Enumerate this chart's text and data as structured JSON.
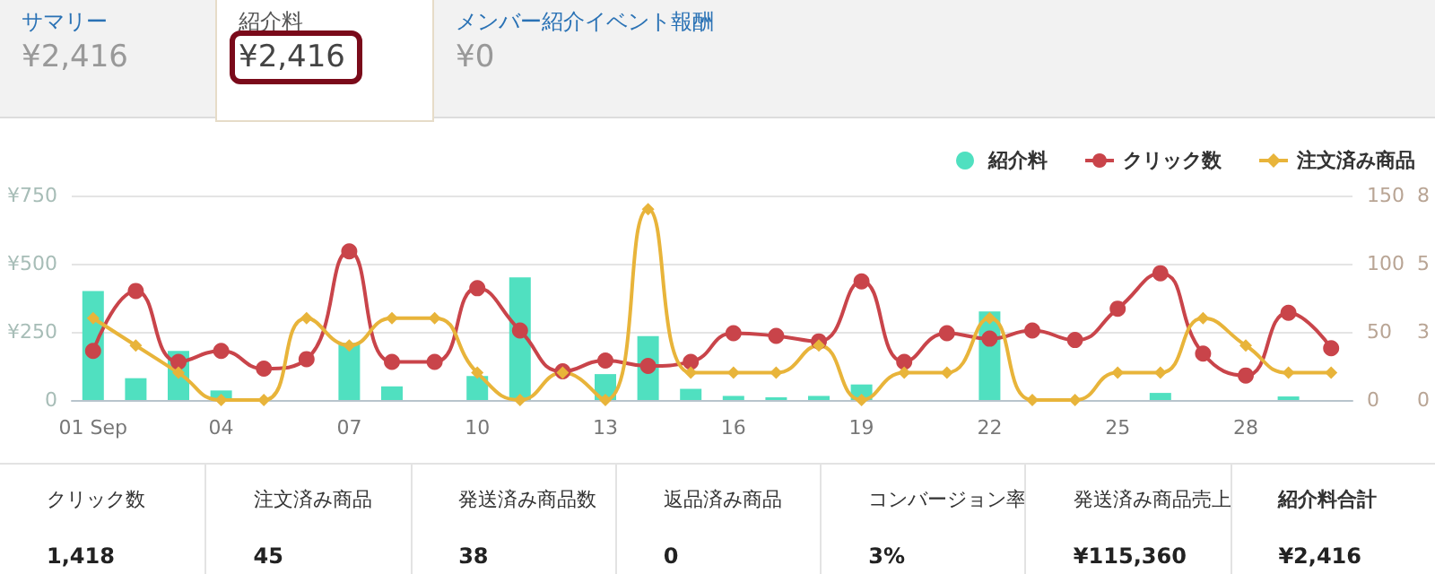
{
  "chart_data": [
    {
      "type": "other",
      "annotations": [
        "サマリー",
        "¥2,416",
        "紹介料",
        "¥2,416",
        "メンバー紹介イベント報酬",
        "¥0"
      ]
    },
    {
      "type": "bar",
      "categories": [
        "01 Sep",
        null,
        null,
        "04",
        null,
        null,
        "07",
        null,
        null,
        "10",
        null,
        null,
        "13",
        null,
        null,
        "16",
        null,
        null,
        "19",
        null,
        null,
        "22",
        null,
        null,
        "25",
        null,
        null,
        "28",
        null,
        null
      ],
      "series": [
        {
          "name": "紹介料",
          "color": "#50e0c0",
          "values": [
            400,
            80,
            180,
            35,
            0,
            0,
            210,
            50,
            0,
            88,
            450,
            0,
            95,
            234,
            41,
            15,
            10,
            15,
            57,
            0,
            0,
            325,
            0,
            0,
            0,
            26,
            0,
            0,
            13,
            0
          ]
        },
        {
          "name": "クリック数",
          "type": "line",
          "axis": "y2",
          "marker": "circle",
          "color": "#c9444a",
          "values": [
            36,
            80,
            28,
            36,
            23,
            30,
            109,
            28,
            28,
            82,
            51,
            21,
            29,
            25,
            28,
            49,
            47,
            43,
            87,
            28,
            49,
            45,
            51,
            44,
            67,
            93,
            34,
            18,
            64,
            38
          ]
        },
        {
          "name": "注文済み商品",
          "type": "line",
          "axis": "y3",
          "marker": "diamond",
          "color": "#e8b43a",
          "values": [
            3,
            2,
            1,
            0,
            0,
            3,
            2,
            3,
            3,
            1,
            0,
            1,
            0,
            7,
            1,
            1,
            1,
            2,
            0,
            1,
            1,
            3,
            0,
            0,
            1,
            1,
            3,
            2,
            1,
            1
          ]
        }
      ],
      "ylim": [
        0,
        750
      ],
      "yticks": [
        0,
        {
          "value": 250,
          "label": "¥250"
        },
        {
          "value": 500,
          "label": "¥500"
        },
        {
          "value": 750,
          "label": "¥750"
        }
      ],
      "y2lim": [
        0,
        150
      ],
      "y2ticks": [
        0,
        50,
        100,
        150
      ],
      "y3lim": [
        0,
        7.5
      ],
      "y3ticks": [
        0,
        {
          "value": 2.5,
          "label": "3"
        },
        5,
        {
          "value": 7.5,
          "label": "8"
        }
      ],
      "grid": "y",
      "legend": "top right"
    },
    {
      "type": "other",
      "annotations": [
        "クリック数",
        "1,418",
        "注文済み商品",
        "45",
        "発送済み商品数",
        "38",
        "返品済み商品",
        "0",
        "コンバージョン率",
        "3%",
        "発送済み商品売上",
        "¥115,360",
        "紹介料合計",
        "¥2,416"
      ]
    }
  ]
}
